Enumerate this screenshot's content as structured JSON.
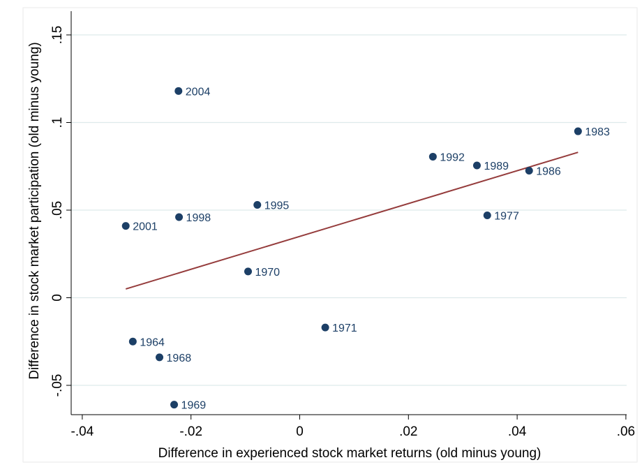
{
  "chart_data": {
    "type": "scatter",
    "title": "",
    "xlabel": "Difference in experienced stock market returns (old minus young)",
    "ylabel": "Difference in stock market participation (old minus young)",
    "xlim": [
      -0.04,
      0.06
    ],
    "ylim": [
      -0.065,
      0.155
    ],
    "xticks": [
      {
        "value": -0.04,
        "label": "-.04"
      },
      {
        "value": -0.02,
        "label": "-.02"
      },
      {
        "value": 0,
        "label": "0"
      },
      {
        "value": 0.02,
        "label": ".02"
      },
      {
        "value": 0.04,
        "label": ".04"
      },
      {
        "value": 0.06,
        "label": ".06"
      }
    ],
    "yticks": [
      {
        "value": -0.05,
        "label": "-.05"
      },
      {
        "value": 0,
        "label": "0"
      },
      {
        "value": 0.05,
        "label": ".05"
      },
      {
        "value": 0.1,
        "label": ".1"
      },
      {
        "value": 0.15,
        "label": ".15"
      }
    ],
    "grid": "horizontal",
    "points": [
      {
        "label": "2004",
        "x": -0.0223,
        "y": 0.118
      },
      {
        "label": "1983",
        "x": 0.0512,
        "y": 0.095
      },
      {
        "label": "1992",
        "x": 0.0245,
        "y": 0.0805
      },
      {
        "label": "1989",
        "x": 0.0326,
        "y": 0.0755
      },
      {
        "label": "1986",
        "x": 0.0422,
        "y": 0.0725
      },
      {
        "label": "1995",
        "x": -0.0078,
        "y": 0.053
      },
      {
        "label": "1977",
        "x": 0.0345,
        "y": 0.047
      },
      {
        "label": "1998",
        "x": -0.0222,
        "y": 0.046
      },
      {
        "label": "2001",
        "x": -0.032,
        "y": 0.041
      },
      {
        "label": "1970",
        "x": -0.0095,
        "y": 0.015
      },
      {
        "label": "1971",
        "x": 0.0047,
        "y": -0.017
      },
      {
        "label": "1964",
        "x": -0.0307,
        "y": -0.025
      },
      {
        "label": "1968",
        "x": -0.0258,
        "y": -0.034
      },
      {
        "label": "1969",
        "x": -0.0231,
        "y": -0.061
      }
    ],
    "fit_line": {
      "x": [
        -0.032,
        0.0512
      ],
      "y": [
        0.005,
        0.083
      ]
    },
    "colors": {
      "point": "#1c3f66",
      "point_label": "#1c3f66",
      "fit_line": "#953c3c",
      "grid": "#dde9eb",
      "axis": "#000000",
      "frame": "#eaeaea"
    }
  }
}
